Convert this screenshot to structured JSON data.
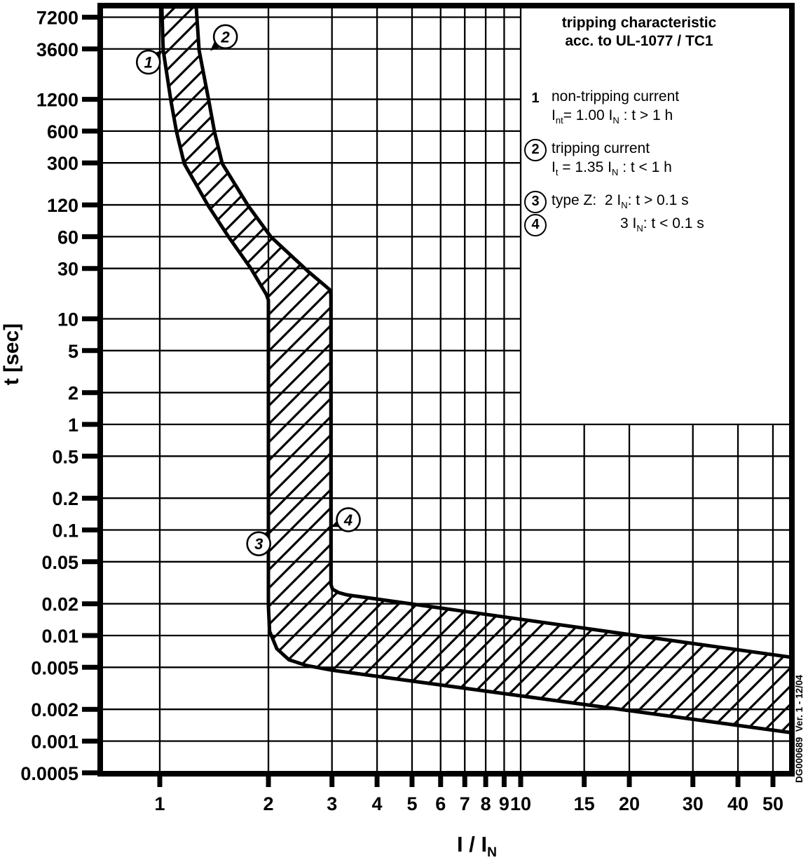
{
  "colors": {
    "foreground": "#000000",
    "background": "#ffffff"
  },
  "legend": {
    "title_line1": "tripping characteristic",
    "title_line2": "acc. to UL-1077 / TC1",
    "items": [
      {
        "marker": "1",
        "circled": false,
        "line1": "non-tripping current",
        "line2_rich": [
          [
            "t",
            "I"
          ],
          [
            "s",
            "nt"
          ],
          [
            "t",
            "= 1.00 I"
          ],
          [
            "s",
            "N"
          ],
          [
            "t",
            " : t > 1 h"
          ]
        ]
      },
      {
        "marker": "2",
        "circled": true,
        "line1": "tripping current",
        "line2_rich": [
          [
            "t",
            "I"
          ],
          [
            "s",
            "t"
          ],
          [
            "t",
            " = 1.35 I"
          ],
          [
            "s",
            "N"
          ],
          [
            "t",
            " : t < 1 h"
          ]
        ]
      },
      {
        "marker": "3",
        "circled": true,
        "line1_rich": [
          [
            "t",
            "type Z:  2 I"
          ],
          [
            "s",
            "N"
          ],
          [
            "t",
            ": t > 0.1 s"
          ]
        ]
      },
      {
        "marker": "4",
        "circled": true,
        "line1_rich": [
          [
            "t",
            "3 I"
          ],
          [
            "s",
            "N"
          ],
          [
            "t",
            ": t < 0.1 s"
          ]
        ]
      }
    ]
  },
  "y_axis": {
    "title": "t [sec]"
  },
  "x_axis": {
    "title_rich": [
      [
        "t",
        "I / I"
      ],
      [
        "s",
        "N"
      ]
    ]
  },
  "side_note": "DG000689  Ver. 1 - 12/04",
  "chart_data": {
    "type": "area",
    "title": "tripping characteristic acc. to UL-1077 / TC1",
    "xlabel": "I / IN",
    "ylabel": "t [sec]",
    "x_scale": "log",
    "y_scale": "log",
    "xlim": [
      0.68,
      56.5
    ],
    "ylim": [
      0.00048,
      9300
    ],
    "grid": true,
    "x_ticks": [
      "1",
      "2",
      "3",
      "4",
      "5",
      "6",
      "7",
      "8",
      "9",
      "10",
      "15",
      "20",
      "30",
      "40",
      "50"
    ],
    "y_ticks": [
      "7200",
      "3600",
      "1200",
      "600",
      "300",
      "120",
      "60",
      "30",
      "10",
      "5",
      "2",
      "1",
      "0.5",
      "0.2",
      "0.1",
      "0.05",
      "0.02",
      "0.01",
      "0.005",
      "0.002",
      "0.001",
      "0.0005"
    ],
    "band": {
      "description": "hatched tripping band between non-tripping and tripping boundaries, values [I/IN, t_sec]",
      "left_boundary": [
        [
          1.013,
          9000
        ],
        [
          1.022,
          3500
        ],
        [
          1.074,
          1150
        ],
        [
          1.113,
          590
        ],
        [
          1.169,
          295
        ],
        [
          1.362,
          118
        ],
        [
          1.55,
          60
        ],
        [
          1.788,
          30
        ],
        [
          1.974,
          17
        ],
        [
          2.0,
          15
        ],
        [
          2.0,
          0.019
        ],
        [
          2.015,
          0.011
        ],
        [
          2.11,
          0.0075
        ],
        [
          2.28,
          0.0059
        ],
        [
          2.55,
          0.0052
        ],
        [
          2.99,
          0.0047
        ],
        [
          56.5,
          0.0012
        ]
      ],
      "right_boundary": [
        [
          1.262,
          9000
        ],
        [
          1.285,
          3500
        ],
        [
          1.368,
          1150
        ],
        [
          1.418,
          590
        ],
        [
          1.49,
          295
        ],
        [
          1.757,
          118
        ],
        [
          2.03,
          60
        ],
        [
          2.58,
          28
        ],
        [
          2.95,
          19
        ],
        [
          2.98,
          17
        ],
        [
          2.98,
          0.0305
        ],
        [
          3.01,
          0.0275
        ],
        [
          3.13,
          0.0255
        ],
        [
          3.3,
          0.0243
        ],
        [
          56.5,
          0.0062
        ]
      ],
      "key_points": {
        "non_tripping_current": "Int = 1.00 IN : t > 1 h",
        "tripping_current": "It = 1.35 IN : t < 1 h",
        "type_Z_hold": "2 IN : t > 0.1 s",
        "type_Z_trip": "3 IN : t < 0.1 s"
      }
    },
    "annotations": [
      {
        "label": "1",
        "circle": [
          0.93,
          2700
        ],
        "target": [
          1.02,
          3500
        ]
      },
      {
        "label": "2",
        "circle": [
          1.52,
          4700
        ],
        "target": [
          1.38,
          3450
        ]
      },
      {
        "label": "3",
        "circle": [
          1.88,
          0.074
        ],
        "target": [
          2.0,
          0.098
        ]
      },
      {
        "label": "4",
        "circle": [
          3.33,
          0.125
        ],
        "target": [
          2.98,
          0.107
        ]
      }
    ],
    "legend_position": "top-right inside plot (grid blanked above t=1 and right of I/IN=10)"
  }
}
